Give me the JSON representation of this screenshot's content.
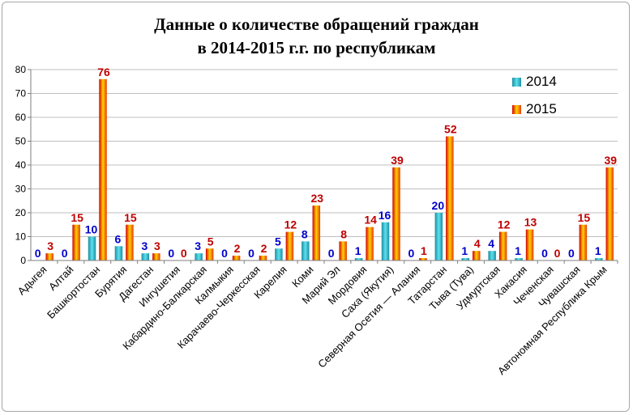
{
  "chart_data": {
    "type": "bar",
    "title_line1": "Данные о количестве обращений граждан",
    "title_line2": "в 2014-2015 г.г. по республикам",
    "xlabel": "",
    "ylabel": "",
    "ylim": [
      0,
      80
    ],
    "yticks": [
      "0",
      "10",
      "20",
      "30",
      "40",
      "50",
      "60",
      "70",
      "80"
    ],
    "grid": true,
    "legend_position": "top-right",
    "categories": [
      "Адыгея",
      "Алтай",
      "Башкортостан",
      "Бурятия",
      "Дагестан",
      "Ингушетия",
      "Кабардино-Балкарская",
      "Калмыкия",
      "Карачаево-Черкесская",
      "Карелия",
      "Коми",
      "Марий Эл",
      "Мордовия",
      "Саха (Якутия)",
      "Северная Осетия — Алания",
      "Татарстан",
      "Тыва (Тува)",
      "Удмуртская",
      "Хакасия",
      "Чеченская",
      "Чувашская",
      "Автономная Республика Крым"
    ],
    "series": [
      {
        "name": "2014",
        "color": "#33c3d6",
        "values": [
          0,
          0,
          10,
          6,
          3,
          0,
          3,
          0,
          0,
          5,
          8,
          0,
          1,
          16,
          0,
          20,
          1,
          4,
          1,
          0,
          0,
          1
        ],
        "labels": [
          "0",
          "0",
          "10",
          "6",
          "3",
          "0",
          "3",
          "0",
          "0",
          "5",
          "8",
          "0",
          "1",
          "16",
          "0",
          "20",
          "1",
          "4",
          "1",
          "0",
          "0",
          "1"
        ]
      },
      {
        "name": "2015",
        "color": "#ff7a00",
        "values": [
          3,
          15,
          76,
          15,
          3,
          0,
          5,
          2,
          2,
          12,
          23,
          8,
          14,
          39,
          1,
          52,
          4,
          12,
          13,
          0,
          15,
          39
        ],
        "labels": [
          "3",
          "15",
          "76",
          "15",
          "3",
          "0",
          "5",
          "2",
          "2",
          "12",
          "23",
          "8",
          "14",
          "39",
          "1",
          "52",
          "4",
          "12",
          "13",
          "0",
          "15",
          "39"
        ]
      }
    ],
    "label_colors": {
      "2014": "#0000cc",
      "2015": "#c00000"
    }
  }
}
